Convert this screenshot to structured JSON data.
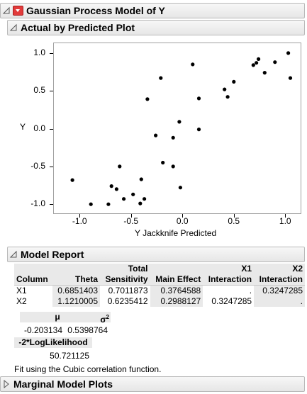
{
  "report": {
    "title": "Gaussian Process Model of Y"
  },
  "actual_by_predicted": {
    "title": "Actual by Predicted Plot",
    "chart_data": {
      "type": "scatter",
      "xlabel": "Y Jackknife Predicted",
      "ylabel": "Y",
      "xlim": [
        -1.25,
        1.15
      ],
      "ylim": [
        -1.12,
        1.13
      ],
      "xticks": [
        "-1.0",
        "-0.5",
        "0.0",
        "0.5",
        "1.0"
      ],
      "yticks": [
        "1.0",
        "0.5",
        "0.0",
        "-0.5",
        "-1.0"
      ],
      "points": [
        [
          -1.07,
          -0.68
        ],
        [
          -0.89,
          -1.0
        ],
        [
          -0.72,
          -1.0
        ],
        [
          -0.69,
          -0.76
        ],
        [
          -0.64,
          -0.8
        ],
        [
          -0.61,
          -0.5
        ],
        [
          -0.57,
          -0.93
        ],
        [
          -0.48,
          -0.87
        ],
        [
          -0.41,
          -0.99
        ],
        [
          -0.4,
          -0.67
        ],
        [
          -0.37,
          -0.93
        ],
        [
          -0.34,
          0.39
        ],
        [
          -0.26,
          -0.09
        ],
        [
          -0.21,
          0.67
        ],
        [
          -0.19,
          -0.45
        ],
        [
          -0.09,
          -0.12
        ],
        [
          -0.09,
          -0.5
        ],
        [
          -0.03,
          0.09
        ],
        [
          -0.02,
          -0.78
        ],
        [
          0.1,
          0.85
        ],
        [
          0.16,
          0.4
        ],
        [
          0.16,
          -0.01
        ],
        [
          0.41,
          0.52
        ],
        [
          0.44,
          0.42
        ],
        [
          0.5,
          0.62
        ],
        [
          0.69,
          0.84
        ],
        [
          0.72,
          0.87
        ],
        [
          0.74,
          0.92
        ],
        [
          0.8,
          0.74
        ],
        [
          0.9,
          0.88
        ],
        [
          1.03,
          1.0
        ],
        [
          1.05,
          0.67
        ]
      ]
    }
  },
  "model_report": {
    "title": "Model Report",
    "columns": {
      "col": "Column",
      "theta": "Theta",
      "total_top": "Total",
      "total_bottom": "Sensitivity",
      "main": "Main Effect",
      "x1_top": "X1",
      "x1_bottom": "Interaction",
      "x2_top": "X2",
      "x2_bottom": "Interaction"
    },
    "rows": [
      {
        "name": "X1",
        "theta": "0.6851403",
        "total": "0.7011873",
        "main": "0.3764588",
        "x1": ".",
        "x2": "0.3247285"
      },
      {
        "name": "X2",
        "theta": "1.1210005",
        "total": "0.6235412",
        "main": "0.2988127",
        "x1": "0.3247285",
        "x2": "."
      }
    ],
    "mu_label": "μ",
    "mu_value": "-0.203134",
    "sigma_label": "σ",
    "sigma_sup": "2",
    "sigma_value": "0.5398764",
    "loglik_label": "-2*LogLikelihood",
    "loglik_value": "50.721125",
    "note": "Fit using the Cubic correlation function."
  },
  "marginal": {
    "title": "Marginal Model Plots"
  }
}
